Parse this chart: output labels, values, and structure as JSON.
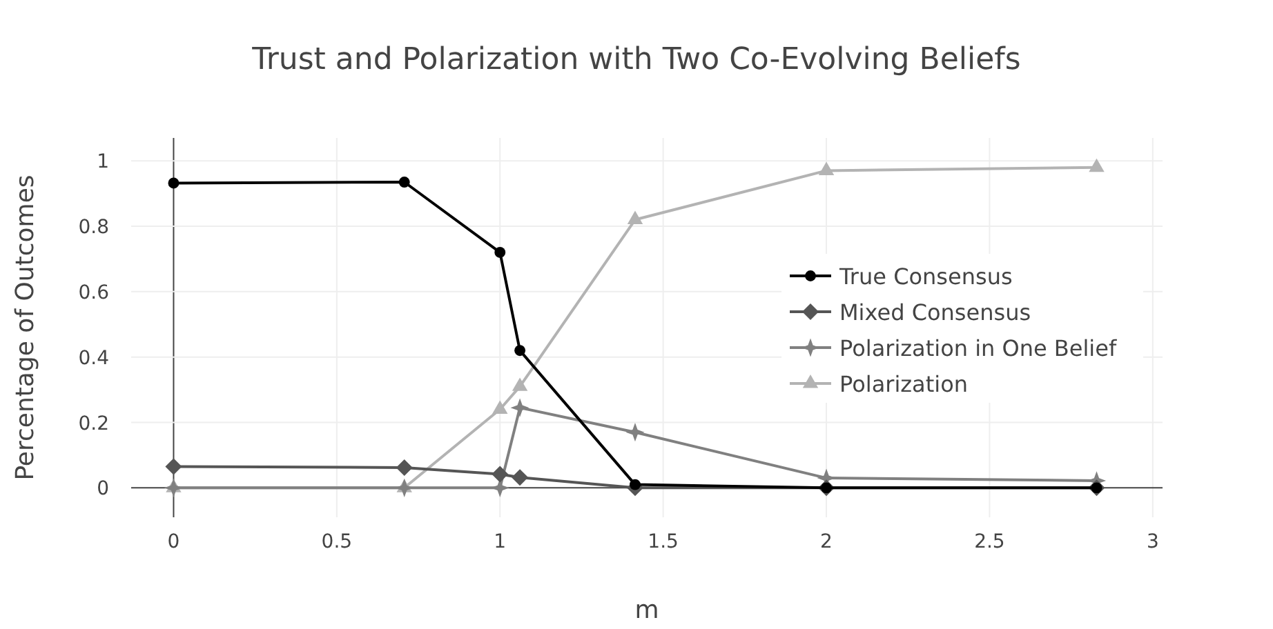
{
  "chart_data": {
    "type": "line",
    "title": "Trust and Polarization with Two Co-Evolving Beliefs",
    "xlabel": "m",
    "ylabel": "Percentage of Outcomes",
    "x": [
      0,
      0.707,
      1,
      1.061,
      1.414,
      2,
      2.828
    ],
    "series": [
      {
        "name": "True Consensus",
        "color": "#000000",
        "marker": "circle",
        "values": [
          0.932,
          0.935,
          0.72,
          0.42,
          0.01,
          0,
          0
        ]
      },
      {
        "name": "Mixed Consensus",
        "color": "#555555",
        "marker": "diamond",
        "values": [
          0.065,
          0.062,
          0.042,
          0.032,
          0,
          0,
          0
        ]
      },
      {
        "name": "Polarization in One Belief",
        "color": "#808080",
        "marker": "star",
        "values": [
          0,
          0,
          0,
          0.245,
          0.17,
          0.03,
          0.022
        ]
      },
      {
        "name": "Polarization",
        "color": "#b3b3b3",
        "marker": "triangle",
        "values": [
          0,
          0,
          0.24,
          0.31,
          0.82,
          0.97,
          0.98
        ]
      }
    ],
    "xlim": [
      -0.13,
      3.03
    ],
    "xticks": [
      0,
      0.5,
      1,
      1.5,
      2,
      2.5,
      3
    ],
    "ylim": [
      -0.09,
      1.07
    ],
    "yticks": [
      0,
      0.2,
      0.4,
      0.6,
      0.8,
      1
    ],
    "grid": true,
    "legend": "right",
    "line_style": "solid"
  }
}
